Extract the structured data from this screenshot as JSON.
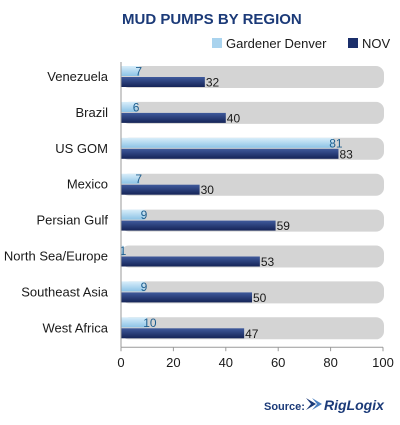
{
  "chart_data": {
    "type": "bar",
    "orientation": "horizontal",
    "title": "MUD PUMPS BY REGION",
    "categories": [
      "Venezuela",
      "Brazil",
      "US GOM",
      "Mexico",
      "Persian Gulf",
      "North Sea/Europe",
      "Southeast Asia",
      "West Africa"
    ],
    "series": [
      {
        "name": "Gardener Denver",
        "color": "#a9d3ee",
        "values": [
          7,
          6,
          81,
          7,
          9,
          1,
          9,
          10
        ]
      },
      {
        "name": "NOV",
        "color": "#1b2f6b",
        "values": [
          32,
          40,
          83,
          30,
          59,
          53,
          50,
          47
        ]
      }
    ],
    "xlim": [
      0,
      100
    ],
    "xticks": [
      0,
      20,
      40,
      60,
      80,
      100
    ],
    "legend_position": "top-right",
    "background_track": true,
    "source_label": "Source:",
    "source_brand": "RigLogix"
  }
}
